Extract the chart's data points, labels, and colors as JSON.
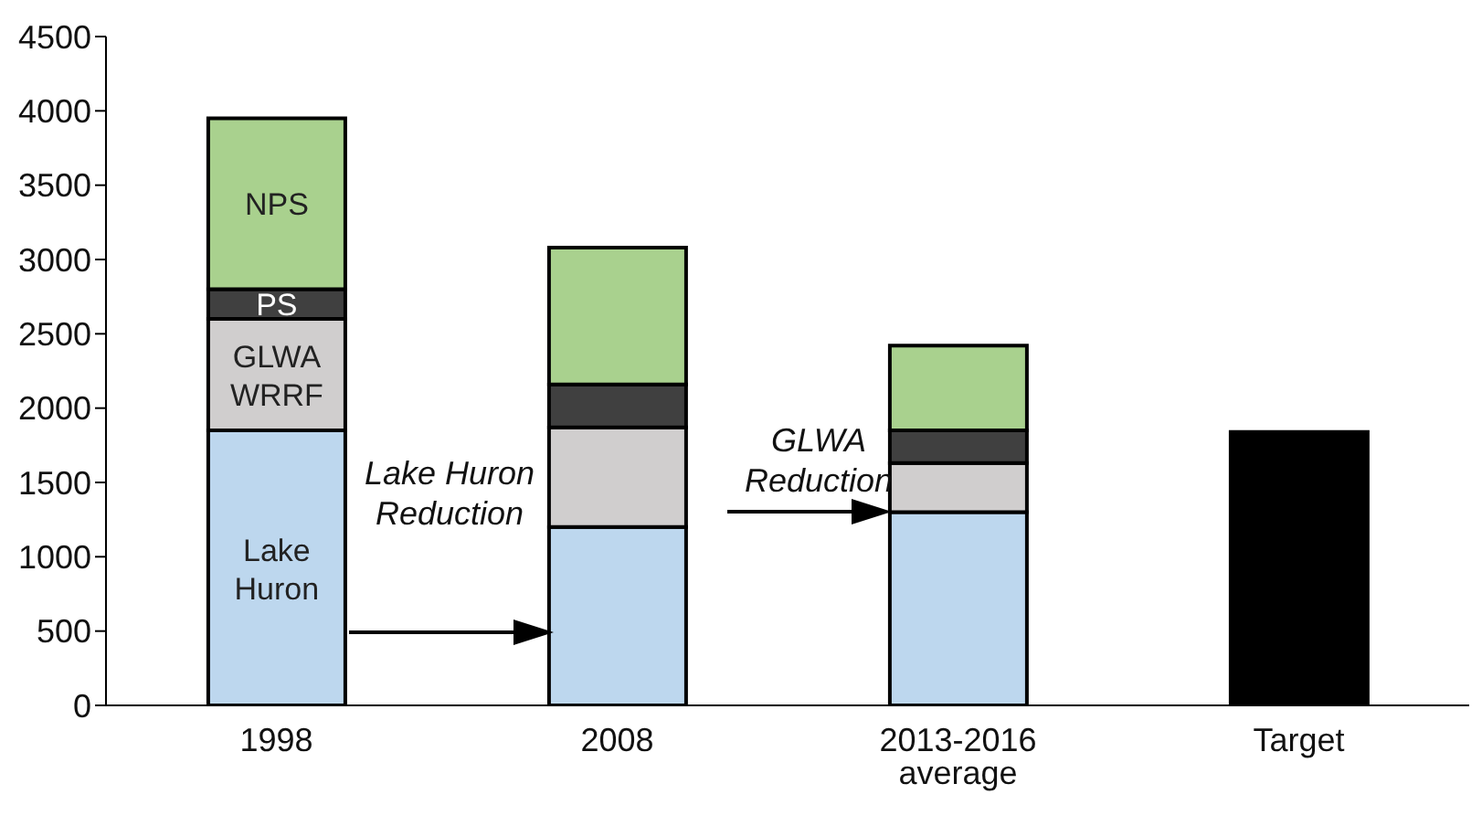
{
  "chart_data": {
    "type": "bar",
    "stacked": true,
    "categories": [
      "1998",
      "2008",
      "2013-2016 average",
      "Target"
    ],
    "series": [
      {
        "name": "Lake Huron",
        "color": "#bdd7ee",
        "values": [
          1850,
          1200,
          1300,
          null
        ]
      },
      {
        "name": "GLWA WRRF",
        "color": "#d0cece",
        "values": [
          750,
          670,
          330,
          null
        ]
      },
      {
        "name": "PS",
        "color": "#404040",
        "values": [
          200,
          290,
          220,
          null
        ]
      },
      {
        "name": "NPS",
        "color": "#a9d18e",
        "values": [
          1150,
          920,
          570,
          null
        ]
      },
      {
        "color": "#000000",
        "values": [
          null,
          null,
          null,
          1840
        ]
      }
    ],
    "ylim": [
      0,
      4500
    ],
    "yticks": [
      0,
      500,
      1000,
      1500,
      2000,
      2500,
      3000,
      3500,
      4000,
      4500
    ],
    "grid": false,
    "legend": false,
    "annotations": [
      "Lake Huron Reduction",
      "GLWA Reduction"
    ]
  }
}
